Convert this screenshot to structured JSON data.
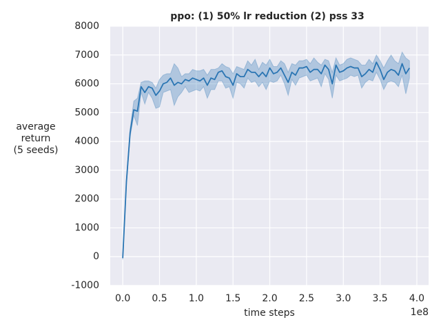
{
  "chart_data": {
    "type": "line",
    "title": "ppo: (1) 50% lr reduction (2) pss 33",
    "xlabel": "time steps",
    "ylabel": [
      "average",
      "return",
      "(5 seeds)"
    ],
    "x_offset_label": "1e8",
    "xlim": [
      -0.17,
      4.16
    ],
    "ylim": [
      -1000,
      8000
    ],
    "xticks": [
      {
        "value": 0,
        "label": "0.0"
      },
      0.5,
      {
        "value": 1,
        "label": "1.0"
      },
      1.5,
      {
        "value": 2,
        "label": "2.0"
      },
      2.5,
      {
        "value": 3,
        "label": "3.0"
      },
      3.5,
      {
        "value": 4,
        "label": "4.0"
      }
    ],
    "yticks": [
      -1000,
      0,
      1000,
      2000,
      3000,
      4000,
      5000,
      6000,
      7000,
      8000
    ],
    "grid": true,
    "background": "#eaeaf2",
    "x": [
      0,
      0.05,
      0.1,
      0.15,
      0.2,
      0.25,
      0.3,
      0.35,
      0.4,
      0.45,
      0.5,
      0.55,
      0.6,
      0.65,
      0.7,
      0.75,
      0.8,
      0.85,
      0.9,
      0.95,
      1.0,
      1.05,
      1.1,
      1.15,
      1.2,
      1.25,
      1.3,
      1.35,
      1.4,
      1.45,
      1.5,
      1.55,
      1.6,
      1.65,
      1.7,
      1.75,
      1.8,
      1.85,
      1.9,
      1.95,
      2.0,
      2.05,
      2.1,
      2.15,
      2.2,
      2.25,
      2.3,
      2.35,
      2.4,
      2.45,
      2.5,
      2.55,
      2.6,
      2.65,
      2.7,
      2.75,
      2.8,
      2.85,
      2.9,
      2.95,
      3.0,
      3.05,
      3.1,
      3.15,
      3.2,
      3.25,
      3.3,
      3.35,
      3.4,
      3.45,
      3.5,
      3.55,
      3.6,
      3.65,
      3.7,
      3.75,
      3.8,
      3.85,
      3.9
    ],
    "series": [
      {
        "color": "#2a75b3",
        "values": [
          -50,
          2600,
          4300,
          5100,
          5050,
          5900,
          5700,
          5900,
          5850,
          5600,
          5750,
          6000,
          6050,
          6200,
          5950,
          6050,
          6000,
          6150,
          6100,
          6200,
          6150,
          6100,
          6200,
          5950,
          6200,
          6150,
          6400,
          6450,
          6250,
          6200,
          5950,
          6350,
          6250,
          6250,
          6500,
          6400,
          6400,
          6250,
          6400,
          6250,
          6550,
          6350,
          6400,
          6550,
          6300,
          6050,
          6400,
          6300,
          6550,
          6550,
          6600,
          6400,
          6500,
          6500,
          6350,
          6650,
          6500,
          6000,
          6650,
          6400,
          6450,
          6550,
          6600,
          6550,
          6550,
          6250,
          6350,
          6500,
          6400,
          6750,
          6500,
          6150,
          6400,
          6500,
          6450,
          6300,
          6700,
          6350,
          6550
        ],
        "lower": [
          -100,
          2500,
          4150,
          4900,
          4550,
          5700,
          5300,
          5700,
          5500,
          5150,
          5200,
          5700,
          5750,
          5800,
          5250,
          5550,
          5700,
          5900,
          5700,
          5750,
          5800,
          5750,
          5900,
          5500,
          5800,
          5800,
          6100,
          6100,
          5850,
          5900,
          5500,
          6050,
          6000,
          5850,
          6200,
          6050,
          6100,
          5900,
          6050,
          5800,
          6100,
          6050,
          6100,
          6300,
          6000,
          5600,
          6150,
          5950,
          6200,
          6250,
          6300,
          6100,
          6150,
          6200,
          5900,
          6350,
          6150,
          5500,
          6300,
          6100,
          6150,
          6200,
          6300,
          6250,
          6300,
          5850,
          6050,
          6150,
          6100,
          6400,
          6150,
          5800,
          6050,
          6100,
          6050,
          5900,
          6300,
          5650,
          6200
        ],
        "upper": [
          0,
          2700,
          4450,
          5400,
          5500,
          6050,
          6100,
          6100,
          6050,
          5850,
          6150,
          6300,
          6350,
          6350,
          6700,
          6550,
          6250,
          6350,
          6350,
          6500,
          6450,
          6450,
          6500,
          6300,
          6500,
          6500,
          6550,
          6700,
          6600,
          6550,
          6350,
          6600,
          6550,
          6500,
          6800,
          6650,
          6850,
          6500,
          6750,
          6650,
          6850,
          6600,
          6600,
          6800,
          6700,
          6400,
          6700,
          6650,
          6800,
          6800,
          6850,
          6700,
          6900,
          6750,
          6650,
          6850,
          6800,
          6400,
          6900,
          6650,
          6700,
          6850,
          6900,
          6850,
          6800,
          6650,
          6650,
          6850,
          6700,
          7000,
          6800,
          6550,
          6800,
          7000,
          6800,
          6700,
          7100,
          6900,
          6800
        ]
      }
    ]
  }
}
